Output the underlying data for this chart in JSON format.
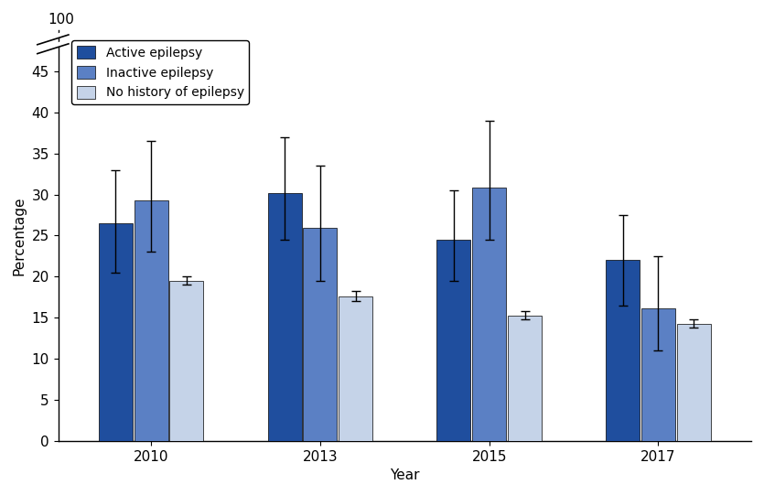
{
  "years": [
    "2010",
    "2013",
    "2015",
    "2017"
  ],
  "active_epilepsy": [
    26.5,
    30.2,
    24.5,
    22.0
  ],
  "inactive_epilepsy": [
    29.3,
    25.9,
    30.8,
    16.1
  ],
  "no_history": [
    19.5,
    17.6,
    15.3,
    14.2
  ],
  "active_ci_lower": [
    20.5,
    24.5,
    19.5,
    16.5
  ],
  "active_ci_upper": [
    33.0,
    37.0,
    30.5,
    27.5
  ],
  "inactive_ci_lower": [
    23.0,
    19.5,
    24.5,
    11.0
  ],
  "inactive_ci_upper": [
    36.5,
    33.5,
    39.0,
    22.5
  ],
  "no_history_ci_lower": [
    19.0,
    17.0,
    14.8,
    13.8
  ],
  "no_history_ci_upper": [
    20.0,
    18.3,
    15.8,
    14.8
  ],
  "color_active": "#1f4e9e",
  "color_inactive": "#5b80c4",
  "color_no_history": "#c5d3e8",
  "bar_width": 0.2,
  "ylim": [
    0,
    50
  ],
  "yticks": [
    0,
    5,
    10,
    15,
    20,
    25,
    30,
    35,
    40,
    45
  ],
  "ylabel": "Percentage",
  "xlabel": "Year",
  "legend_labels": [
    "Active epilepsy",
    "Inactive epilepsy",
    "No history of epilepsy"
  ]
}
